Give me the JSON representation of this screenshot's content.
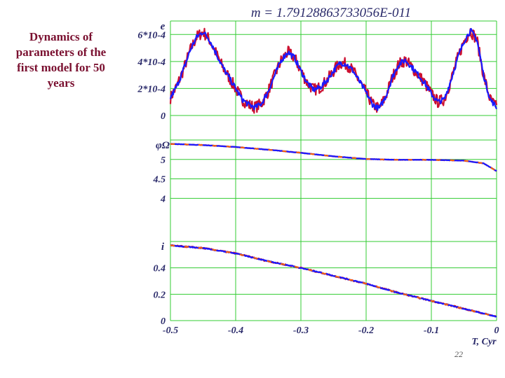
{
  "caption": [
    "Dynamics of",
    "parameters of the",
    "first model for 50",
    "years"
  ],
  "page_number": "22",
  "colors": {
    "grid": "#33cc33",
    "series_red": "#cc1030",
    "series_blue": "#1a1aff",
    "series_orange": "#ff6600",
    "axis_text": "#2a2a6a"
  },
  "chart_data": [
    {
      "type": "line",
      "title": "m = 1.79128863733056E-011",
      "ylabel": "e",
      "ytick_labels": [
        "0",
        "2*10-4",
        "4*10-4",
        "6*10-4"
      ],
      "yticks": [
        0,
        0.0002,
        0.0004,
        0.0006
      ],
      "ylim": [
        0,
        0.0007
      ],
      "grid": true,
      "series": [
        {
          "color": "#cc1030",
          "noise": 4.5e-05
        },
        {
          "color": "#1a1aff",
          "noise": 2e-05
        }
      ],
      "x": [
        -0.5,
        -0.49,
        -0.48,
        -0.47,
        -0.46,
        -0.45,
        -0.44,
        -0.43,
        -0.42,
        -0.41,
        -0.4,
        -0.39,
        -0.38,
        -0.37,
        -0.36,
        -0.35,
        -0.34,
        -0.33,
        -0.32,
        -0.31,
        -0.3,
        -0.29,
        -0.28,
        -0.27,
        -0.26,
        -0.25,
        -0.24,
        -0.23,
        -0.22,
        -0.21,
        -0.2,
        -0.19,
        -0.18,
        -0.17,
        -0.16,
        -0.15,
        -0.14,
        -0.13,
        -0.12,
        -0.11,
        -0.1,
        -0.09,
        -0.08,
        -0.07,
        -0.06,
        -0.05,
        -0.04,
        -0.03,
        -0.02,
        -0.01,
        0
      ],
      "values": [
        0.00013,
        0.00022,
        0.00034,
        0.00048,
        0.00058,
        0.00062,
        0.00056,
        0.00046,
        0.00036,
        0.00028,
        0.0002,
        0.00012,
        8e-05,
        6e-05,
        9e-05,
        0.00018,
        0.0003,
        0.00041,
        0.00047,
        0.00043,
        0.00033,
        0.00024,
        0.00019,
        0.00021,
        0.00026,
        0.00033,
        0.00039,
        0.00038,
        0.00033,
        0.00025,
        0.00017,
        8e-05,
        5e-05,
        0.00014,
        0.00028,
        0.00038,
        0.00041,
        0.00036,
        0.0003,
        0.00024,
        0.00016,
        0.0001,
        0.00012,
        0.00026,
        0.00042,
        0.00055,
        0.00063,
        0.00056,
        0.0003,
        0.00012,
        6e-05
      ]
    },
    {
      "type": "line",
      "ylabel": "φΩ",
      "ytick_labels": [
        "4",
        "4.5",
        "5"
      ],
      "yticks": [
        4,
        4.5,
        5
      ],
      "ylim": [
        3.7,
        5.5
      ],
      "grid": true,
      "series": [
        {
          "color": "#cc1030",
          "noise": 0.006
        },
        {
          "color": "#1a1aff",
          "noise": 0.004
        },
        {
          "color": "#ff6600",
          "noise": 0.0,
          "dash": "6 14"
        }
      ],
      "x": [
        -0.5,
        -0.45,
        -0.4,
        -0.35,
        -0.3,
        -0.25,
        -0.2,
        -0.15,
        -0.1,
        -0.05,
        -0.02,
        0
      ],
      "values": [
        5.4,
        5.37,
        5.32,
        5.25,
        5.17,
        5.08,
        5.01,
        4.99,
        4.99,
        4.97,
        4.9,
        4.7
      ]
    },
    {
      "type": "line",
      "ylabel": "i",
      "ytick_labels": [
        "0",
        "0.2",
        "0.4"
      ],
      "yticks": [
        0,
        0.2,
        0.4
      ],
      "ylim": [
        0,
        0.6
      ],
      "grid": true,
      "series": [
        {
          "color": "#cc1030",
          "noise": 0.005
        },
        {
          "color": "#1a1aff",
          "noise": 0.003
        },
        {
          "color": "#ff6600",
          "noise": 0.0,
          "dash": "6 14"
        }
      ],
      "x": [
        -0.5,
        -0.45,
        -0.4,
        -0.35,
        -0.3,
        -0.25,
        -0.2,
        -0.15,
        -0.1,
        -0.05,
        0
      ],
      "values": [
        0.57,
        0.55,
        0.51,
        0.45,
        0.4,
        0.34,
        0.28,
        0.21,
        0.15,
        0.09,
        0.03
      ]
    }
  ],
  "x_axis": {
    "xlabel": "T, Cyr",
    "ticks": [
      -0.5,
      -0.4,
      -0.3,
      -0.2,
      -0.1,
      0
    ],
    "tick_labels": [
      "-0.5",
      "-0.4",
      "-0.3",
      "-0.2",
      "-0.1",
      "0"
    ],
    "xlim": [
      -0.5,
      0
    ]
  }
}
